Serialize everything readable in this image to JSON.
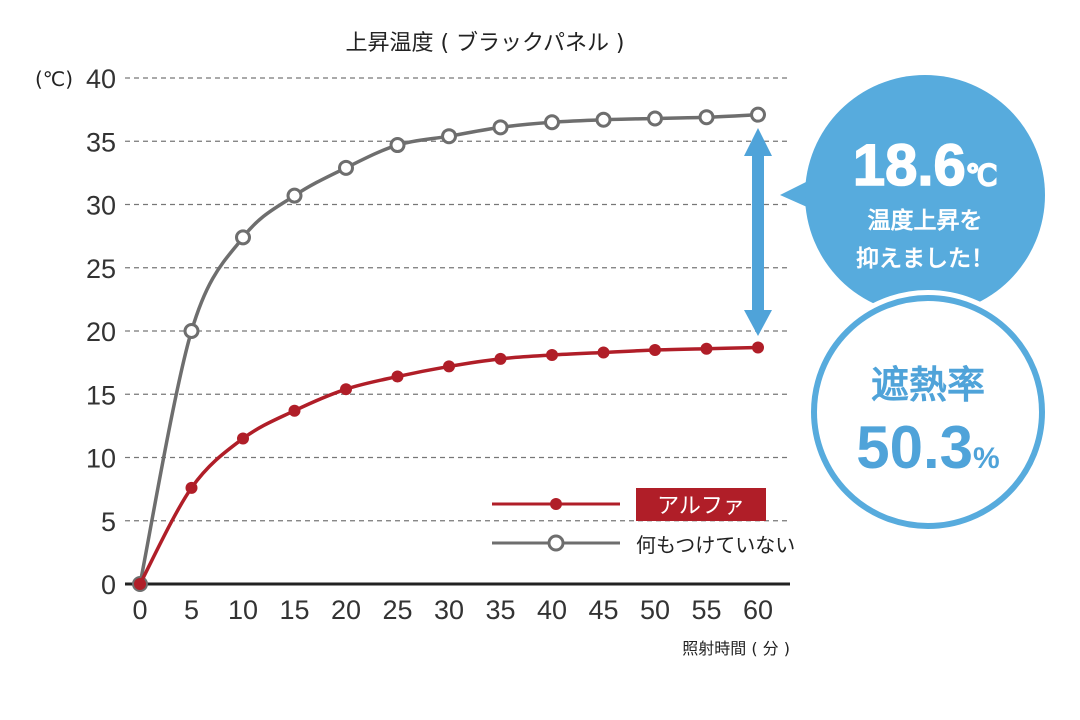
{
  "chart_data": {
    "type": "line",
    "title": "上昇温度 ( ブラックパネル )",
    "xlabel": "照射時間 ( 分 )",
    "ylabel": "(℃)",
    "xlim": [
      0,
      60
    ],
    "ylim": [
      0,
      40
    ],
    "x_ticks": [
      0,
      5,
      10,
      15,
      20,
      25,
      30,
      35,
      40,
      45,
      50,
      55,
      60
    ],
    "y_ticks": [
      0,
      5,
      10,
      15,
      20,
      25,
      30,
      35,
      40
    ],
    "grid": "horizontal dashed",
    "legend_position": "bottom-right",
    "x": [
      0,
      5,
      10,
      15,
      20,
      25,
      30,
      35,
      40,
      45,
      50,
      55,
      60
    ],
    "series": [
      {
        "name": "アルファ",
        "color": "#b01e28",
        "marker": "filled-circle",
        "values": [
          0,
          7.6,
          11.5,
          13.7,
          15.4,
          16.4,
          17.2,
          17.8,
          18.1,
          18.3,
          18.5,
          18.6,
          18.7
        ]
      },
      {
        "name": "何もつけていない",
        "color": "#6e6e6e",
        "marker": "hollow-circle",
        "values": [
          0,
          20.0,
          27.4,
          30.7,
          32.9,
          34.7,
          35.4,
          36.1,
          36.5,
          36.7,
          36.8,
          36.9,
          37.1
        ]
      }
    ],
    "annotations": {
      "bubble_value": "18.6",
      "bubble_unit": "℃",
      "bubble_line1": "温度上昇を",
      "bubble_line2": "抑えました！",
      "circle_label": "遮熱率",
      "circle_value": "50.3",
      "circle_unit": "%",
      "arrow_color": "#4fa3d9"
    }
  }
}
